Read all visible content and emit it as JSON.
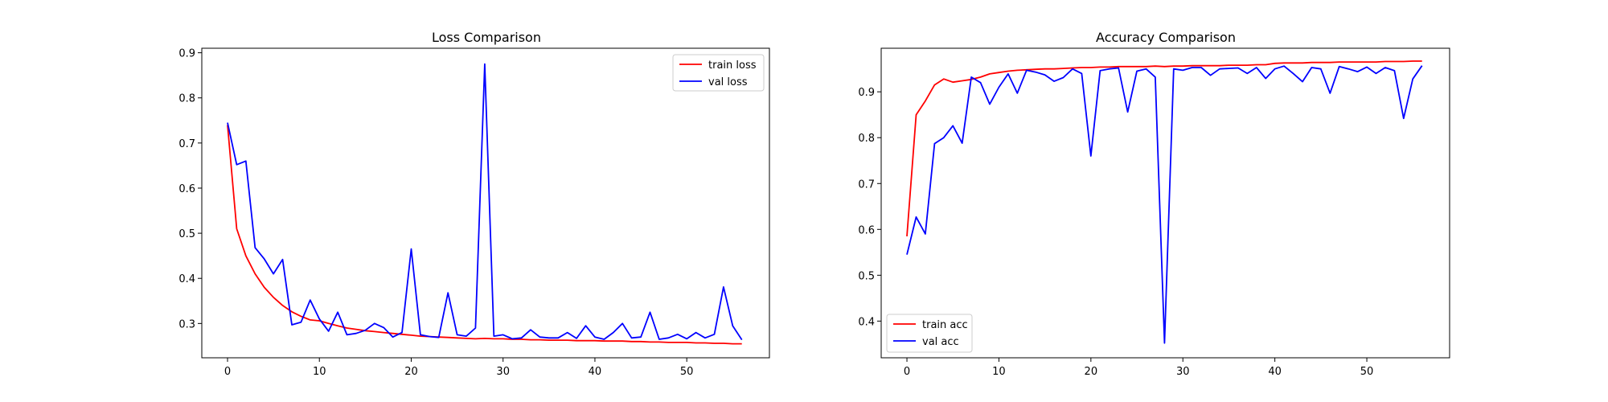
{
  "chart_data": [
    {
      "type": "line",
      "title": "Loss Comparison",
      "xlabel": "",
      "ylabel": "",
      "xlim": [
        -2.8,
        59.0
      ],
      "ylim": [
        0.224,
        0.91
      ],
      "xticks": [
        0,
        10,
        20,
        30,
        40,
        50
      ],
      "yticks": [
        0.3,
        0.4,
        0.5,
        0.6,
        0.7,
        0.8,
        0.9
      ],
      "xtick_labels": [
        "0",
        "10",
        "20",
        "30",
        "40",
        "50"
      ],
      "ytick_labels": [
        "0.3",
        "0.4",
        "0.5",
        "0.6",
        "0.7",
        "0.8",
        "0.9"
      ],
      "grid": false,
      "legend_position": "top-right",
      "series": [
        {
          "name": "train loss",
          "color": "#ff0000",
          "x": [
            0,
            1,
            2,
            3,
            4,
            5,
            6,
            7,
            8,
            9,
            10,
            11,
            12,
            13,
            14,
            15,
            16,
            17,
            18,
            19,
            20,
            21,
            22,
            23,
            24,
            25,
            26,
            27,
            28,
            29,
            30,
            31,
            32,
            33,
            34,
            35,
            36,
            37,
            38,
            39,
            40,
            41,
            42,
            43,
            44,
            45,
            46,
            47,
            48,
            49,
            50,
            51,
            52,
            53,
            54,
            55,
            56
          ],
          "values": [
            0.74,
            0.51,
            0.45,
            0.41,
            0.38,
            0.358,
            0.34,
            0.326,
            0.316,
            0.308,
            0.306,
            0.3,
            0.295,
            0.29,
            0.287,
            0.284,
            0.282,
            0.28,
            0.278,
            0.276,
            0.274,
            0.272,
            0.271,
            0.27,
            0.269,
            0.268,
            0.267,
            0.266,
            0.267,
            0.266,
            0.266,
            0.265,
            0.265,
            0.264,
            0.264,
            0.263,
            0.263,
            0.263,
            0.262,
            0.262,
            0.262,
            0.261,
            0.261,
            0.261,
            0.26,
            0.26,
            0.259,
            0.259,
            0.258,
            0.258,
            0.258,
            0.257,
            0.257,
            0.256,
            0.256,
            0.255,
            0.255
          ]
        },
        {
          "name": "val loss",
          "color": "#0000ff",
          "x": [
            0,
            1,
            2,
            3,
            4,
            5,
            6,
            7,
            8,
            9,
            10,
            11,
            12,
            13,
            14,
            15,
            16,
            17,
            18,
            19,
            20,
            21,
            22,
            23,
            24,
            25,
            26,
            27,
            28,
            29,
            30,
            31,
            32,
            33,
            34,
            35,
            36,
            37,
            38,
            39,
            40,
            41,
            42,
            43,
            44,
            45,
            46,
            47,
            48,
            49,
            50,
            51,
            52,
            53,
            54,
            55,
            56
          ],
          "values": [
            0.745,
            0.652,
            0.66,
            0.468,
            0.443,
            0.41,
            0.442,
            0.297,
            0.303,
            0.352,
            0.31,
            0.283,
            0.325,
            0.275,
            0.278,
            0.285,
            0.3,
            0.291,
            0.27,
            0.28,
            0.465,
            0.275,
            0.271,
            0.269,
            0.368,
            0.275,
            0.272,
            0.29,
            0.875,
            0.272,
            0.275,
            0.266,
            0.268,
            0.286,
            0.27,
            0.268,
            0.268,
            0.28,
            0.267,
            0.295,
            0.27,
            0.265,
            0.28,
            0.3,
            0.268,
            0.27,
            0.325,
            0.265,
            0.268,
            0.276,
            0.266,
            0.28,
            0.268,
            0.276,
            0.381,
            0.295,
            0.264
          ]
        }
      ]
    },
    {
      "type": "line",
      "title": "Accuracy Comparison",
      "xlabel": "",
      "ylabel": "",
      "xlim": [
        -2.8,
        59.0
      ],
      "ylim": [
        0.32,
        0.995
      ],
      "xticks": [
        0,
        10,
        20,
        30,
        40,
        50
      ],
      "yticks": [
        0.4,
        0.5,
        0.6,
        0.7,
        0.8,
        0.9
      ],
      "xtick_labels": [
        "0",
        "10",
        "20",
        "30",
        "40",
        "50"
      ],
      "ytick_labels": [
        "0.4",
        "0.5",
        "0.6",
        "0.7",
        "0.8",
        "0.9"
      ],
      "grid": false,
      "legend_position": "bottom-left",
      "series": [
        {
          "name": "train acc",
          "color": "#ff0000",
          "x": [
            0,
            1,
            2,
            3,
            4,
            5,
            6,
            7,
            8,
            9,
            10,
            11,
            12,
            13,
            14,
            15,
            16,
            17,
            18,
            19,
            20,
            21,
            22,
            23,
            24,
            25,
            26,
            27,
            28,
            29,
            30,
            31,
            32,
            33,
            34,
            35,
            36,
            37,
            38,
            39,
            40,
            41,
            42,
            43,
            44,
            45,
            46,
            47,
            48,
            49,
            50,
            51,
            52,
            53,
            54,
            55,
            56
          ],
          "values": [
            0.585,
            0.85,
            0.88,
            0.915,
            0.928,
            0.921,
            0.924,
            0.927,
            0.932,
            0.939,
            0.942,
            0.945,
            0.947,
            0.948,
            0.949,
            0.95,
            0.95,
            0.951,
            0.952,
            0.953,
            0.953,
            0.954,
            0.954,
            0.955,
            0.955,
            0.955,
            0.955,
            0.956,
            0.955,
            0.956,
            0.956,
            0.957,
            0.957,
            0.957,
            0.957,
            0.958,
            0.958,
            0.958,
            0.959,
            0.959,
            0.962,
            0.963,
            0.963,
            0.963,
            0.964,
            0.964,
            0.964,
            0.965,
            0.965,
            0.965,
            0.965,
            0.965,
            0.966,
            0.966,
            0.966,
            0.967,
            0.967
          ]
        },
        {
          "name": "val acc",
          "color": "#0000ff",
          "x": [
            0,
            1,
            2,
            3,
            4,
            5,
            6,
            7,
            8,
            9,
            10,
            11,
            12,
            13,
            14,
            15,
            16,
            17,
            18,
            19,
            20,
            21,
            22,
            23,
            24,
            25,
            26,
            27,
            28,
            29,
            30,
            31,
            32,
            33,
            34,
            35,
            36,
            37,
            38,
            39,
            40,
            41,
            42,
            43,
            44,
            45,
            46,
            47,
            48,
            49,
            50,
            51,
            52,
            53,
            54,
            55,
            56
          ],
          "values": [
            0.545,
            0.627,
            0.59,
            0.787,
            0.8,
            0.826,
            0.788,
            0.932,
            0.92,
            0.873,
            0.91,
            0.939,
            0.897,
            0.947,
            0.943,
            0.937,
            0.923,
            0.931,
            0.95,
            0.94,
            0.76,
            0.946,
            0.95,
            0.952,
            0.856,
            0.945,
            0.95,
            0.932,
            0.352,
            0.95,
            0.947,
            0.953,
            0.953,
            0.936,
            0.95,
            0.951,
            0.952,
            0.94,
            0.953,
            0.929,
            0.95,
            0.956,
            0.94,
            0.922,
            0.953,
            0.95,
            0.897,
            0.955,
            0.95,
            0.944,
            0.954,
            0.94,
            0.953,
            0.946,
            0.842,
            0.928,
            0.957
          ]
        }
      ]
    }
  ]
}
